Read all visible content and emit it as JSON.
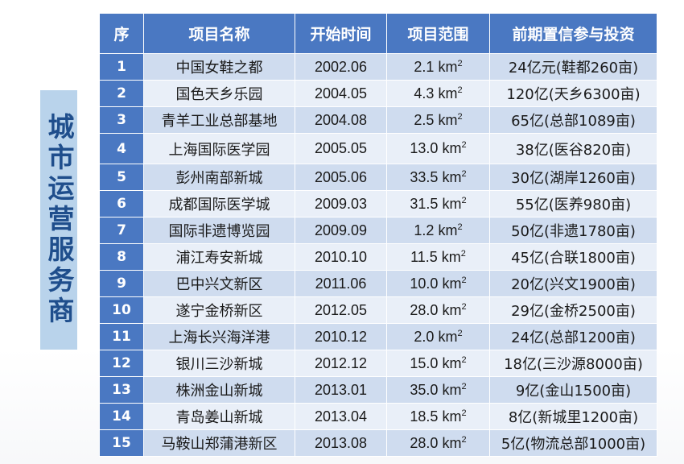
{
  "side_title": "城市运营服务商",
  "table": {
    "headers": [
      "序",
      "项目名称",
      "开始时间",
      "项目范围",
      "前期置信参与投资"
    ],
    "unit": "km",
    "unit_exp": "2",
    "rows": [
      {
        "no": "1",
        "name": "中国女鞋之都",
        "date": "2002.06",
        "area": "2.1",
        "invest": "24亿元(鞋都260亩)"
      },
      {
        "no": "2",
        "name": "国色天乡乐园",
        "date": "2004.05",
        "area": "4.3",
        "invest": "120亿(天乡6300亩)"
      },
      {
        "no": "3",
        "name": "青羊工业总部基地",
        "date": "2004.08",
        "area": "2.5",
        "invest": "65亿(总部1089亩)"
      },
      {
        "no": "4",
        "name": "上海国际医学园",
        "date": "2005.05",
        "area": "13.0",
        "invest": "38亿(医谷820亩)"
      },
      {
        "no": "5",
        "name": "彭州南部新城",
        "date": "2005.06",
        "area": "33.5",
        "invest": "30亿(湖岸1260亩)"
      },
      {
        "no": "6",
        "name": "成都国际医学城",
        "date": "2009.03",
        "area": "31.5",
        "invest": "55亿(医养980亩)"
      },
      {
        "no": "7",
        "name": "国际非遗博览园",
        "date": "2009.09",
        "area": "1.2",
        "invest": "50亿(非遗1780亩)"
      },
      {
        "no": "8",
        "name": "浦江寿安新城",
        "date": "2010.10",
        "area": "11.5",
        "invest": "45亿(合联1800亩)"
      },
      {
        "no": "9",
        "name": "巴中兴文新区",
        "date": "2011.06",
        "area": "10.0",
        "invest": "20亿(兴文1900亩)"
      },
      {
        "no": "10",
        "name": "遂宁金桥新区",
        "date": "2012.05",
        "area": "28.0",
        "invest": "29亿(金桥2500亩)"
      },
      {
        "no": "11",
        "name": "上海长兴海洋港",
        "date": "2010.12",
        "area": "2.0",
        "invest": "24亿(总部1200亩)"
      },
      {
        "no": "12",
        "name": "银川三沙新城",
        "date": "2012.12",
        "area": "15.0",
        "invest": "18亿(三沙源8000亩)"
      },
      {
        "no": "13",
        "name": "株洲金山新城",
        "date": "2013.01",
        "area": "35.0",
        "invest": "9亿(金山1500亩)"
      },
      {
        "no": "14",
        "name": "青岛姜山新城",
        "date": "2013.04",
        "area": "18.5",
        "invest": "8亿(新城里1200亩)"
      },
      {
        "no": "15",
        "name": "马鞍山郑蒲港新区",
        "date": "2013.08",
        "area": "28.0",
        "invest": "5亿(物流总部1000亩)"
      }
    ]
  },
  "colors": {
    "header_bg": "#4a78c2",
    "row_odd": "#cfdcef",
    "row_even": "#e9eff8",
    "side_bg": "#b9d3eb",
    "side_text": "#1f4e8c"
  }
}
